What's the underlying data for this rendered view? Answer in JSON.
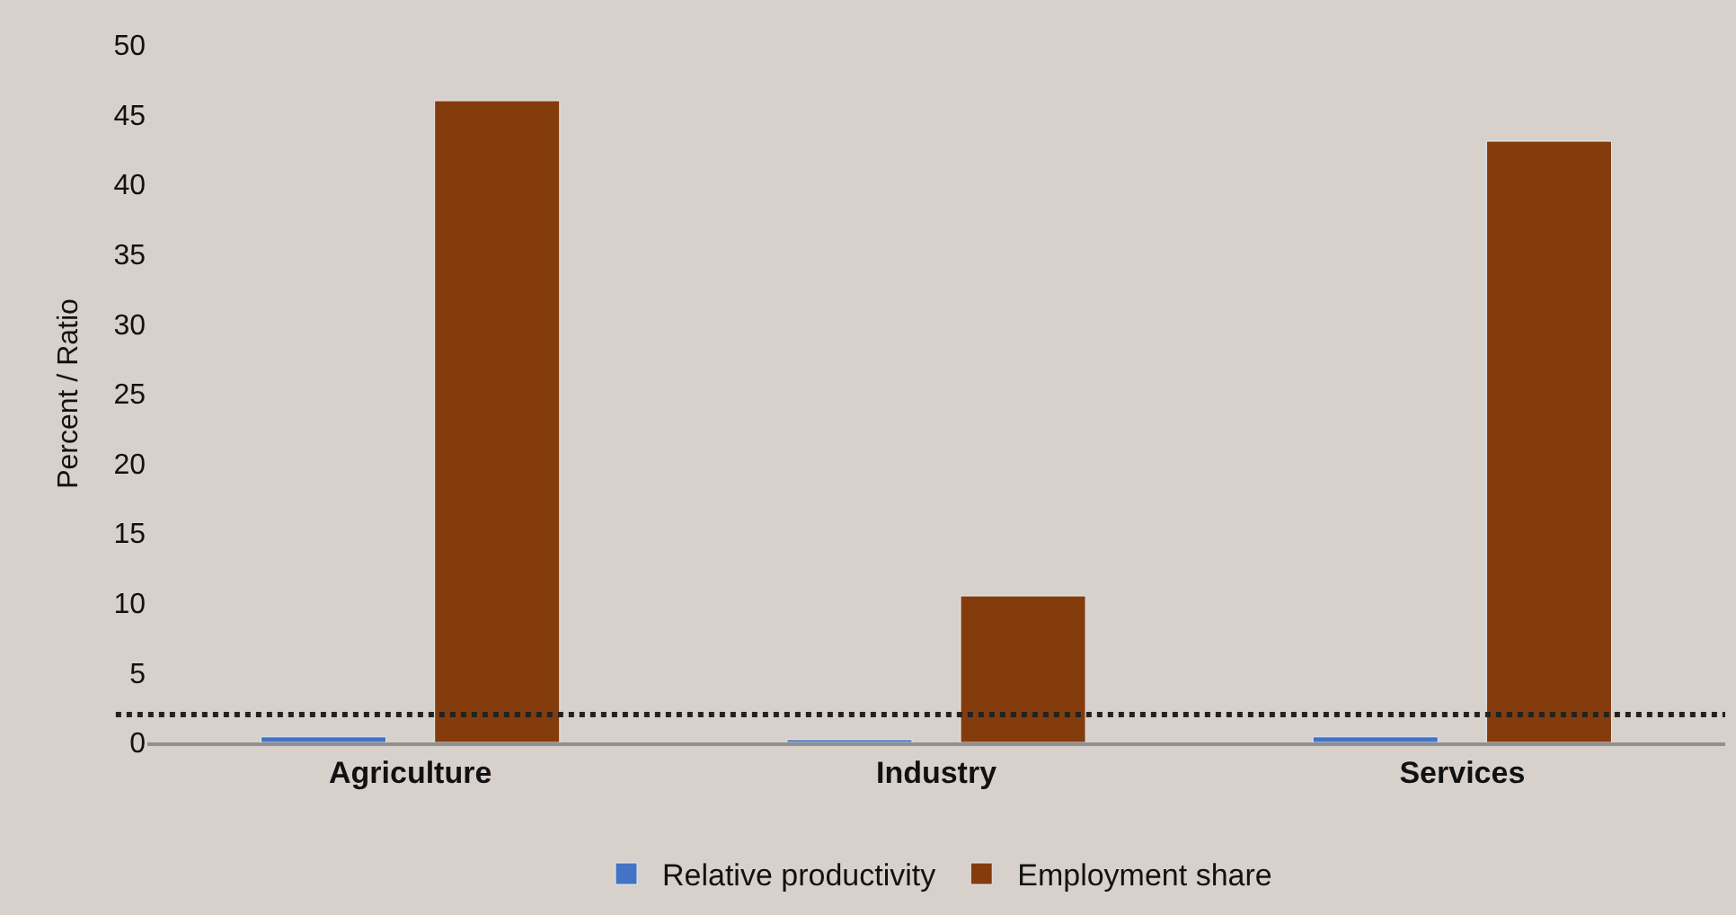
{
  "chart_data": {
    "type": "bar",
    "ylabel": "Percent / Ratio",
    "categories": [
      "Agriculture",
      "Industry",
      "Services"
    ],
    "series": [
      {
        "name": "Relative productivity",
        "color": "#4472c4",
        "values": [
          0.4,
          0.2,
          0.4
        ]
      },
      {
        "name": "Employment share",
        "color": "#843c0c",
        "values": [
          46.0,
          10.5,
          43.1
        ]
      }
    ],
    "ylim": [
      0,
      50
    ],
    "yticks": [
      0,
      5,
      10,
      15,
      20,
      25,
      30,
      35,
      40,
      45,
      50
    ],
    "ref_lines": [
      {
        "axis": "y",
        "value": 2,
        "color": "#222222",
        "line_style": "dotted"
      }
    ],
    "grid": false,
    "legend": "bottom"
  }
}
